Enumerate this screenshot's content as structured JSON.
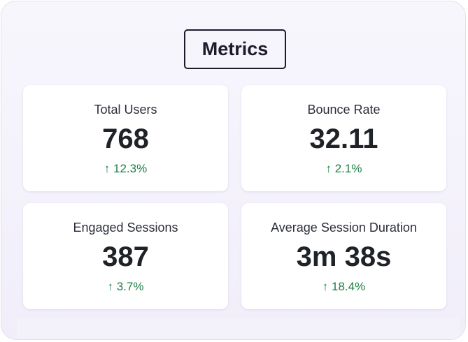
{
  "title": "Metrics",
  "colors": {
    "positive": "#1e7e45",
    "background": "#f4f2fb"
  },
  "metrics": [
    {
      "label": "Total Users",
      "value": "768",
      "change": "↑ 12.3%",
      "trend_icon": "arrow-up-icon"
    },
    {
      "label": "Bounce Rate",
      "value": "32.11",
      "change": "↑ 2.1%",
      "trend_icon": "arrow-up-icon"
    },
    {
      "label": "Engaged Sessions",
      "value": "387",
      "change": "↑ 3.7%",
      "trend_icon": "arrow-up-icon"
    },
    {
      "label": "Average Session Duration",
      "value": "3m 38s",
      "change": "↑ 18.4%",
      "trend_icon": "arrow-up-icon"
    }
  ]
}
